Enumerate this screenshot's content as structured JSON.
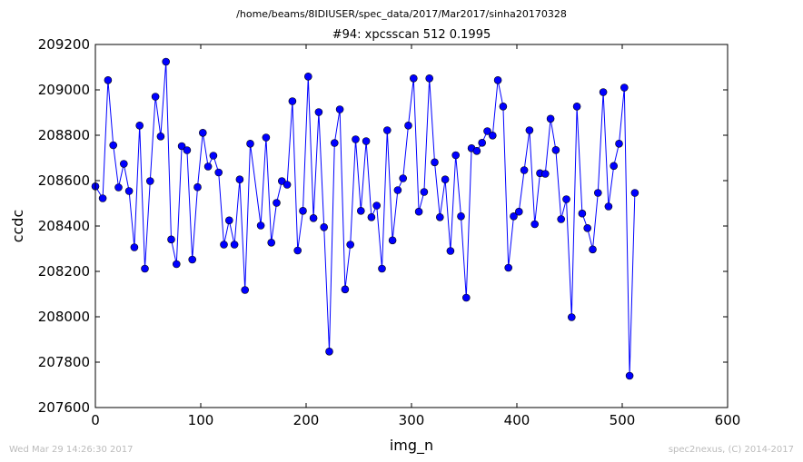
{
  "header": {
    "path": "/home/beams/8IDIUSER/spec_data/2017/Mar2017/sinha20170328",
    "title": "#94: xpcsscan 512 0.1995"
  },
  "footer": {
    "timestamp": "Wed Mar 29 14:26:30 2017",
    "credit": "spec2nexus, (C) 2014-2017"
  },
  "chart_data": {
    "type": "line",
    "markers": true,
    "title": "#94: xpcsscan 512 0.1995",
    "xlabel": "img_n",
    "ylabel": "ccdc",
    "xlim": [
      0,
      600
    ],
    "ylim": [
      207600,
      209200
    ],
    "xticks": [
      0,
      100,
      200,
      300,
      400,
      500,
      600
    ],
    "yticks": [
      207600,
      207800,
      208000,
      208200,
      208400,
      208600,
      208800,
      209000,
      209200
    ],
    "grid": false,
    "color": "#0000ff",
    "series": [
      {
        "x": [
          0,
          7,
          12,
          17,
          22,
          27,
          32,
          37,
          42,
          47,
          52,
          57,
          62,
          67,
          72,
          77,
          82,
          87,
          92,
          97,
          102,
          107,
          112,
          117,
          122,
          127,
          132,
          137,
          142,
          147,
          157,
          162,
          167,
          172,
          177,
          182,
          187,
          192,
          197,
          202,
          207,
          212,
          217,
          222,
          227,
          232,
          237,
          242,
          247,
          252,
          257,
          262,
          267,
          272,
          277,
          282,
          287,
          292,
          297,
          302,
          307,
          312,
          317,
          322,
          327,
          332,
          337,
          342,
          347,
          352,
          357,
          362,
          367,
          372,
          377,
          382,
          387,
          392,
          397,
          402,
          407,
          412,
          417,
          422,
          427,
          432,
          437,
          442,
          447,
          452,
          457,
          462,
          467,
          472,
          477,
          482,
          487,
          492,
          497,
          502,
          507,
          512
        ],
        "y": [
          208575,
          208522,
          209043,
          208756,
          208570,
          208674,
          208554,
          208306,
          208843,
          208212,
          208598,
          208970,
          208795,
          209124,
          208341,
          208232,
          208752,
          208734,
          208252,
          208571,
          208811,
          208662,
          208710,
          208636,
          208318,
          208425,
          208318,
          208605,
          208118,
          208763,
          208402,
          208790,
          208327,
          208502,
          208598,
          208582,
          208950,
          208292,
          208467,
          209059,
          208435,
          208902,
          208395,
          207847,
          208766,
          208914,
          208121,
          208318,
          208782,
          208467,
          208774,
          208439,
          208490,
          208212,
          208822,
          208337,
          208558,
          208610,
          208843,
          209051,
          208463,
          208550,
          209051,
          208681,
          208439,
          208605,
          208290,
          208712,
          208443,
          208084,
          208743,
          208731,
          208767,
          208818,
          208799,
          209043,
          208927,
          208216,
          208443,
          208463,
          208646,
          208822,
          208408,
          208633,
          208630,
          208873,
          208735,
          208430,
          208518,
          207998,
          208927,
          208455,
          208391,
          208297,
          208546,
          208990,
          208486,
          208665,
          208763,
          209010,
          207740,
          208546
        ]
      }
    ]
  }
}
